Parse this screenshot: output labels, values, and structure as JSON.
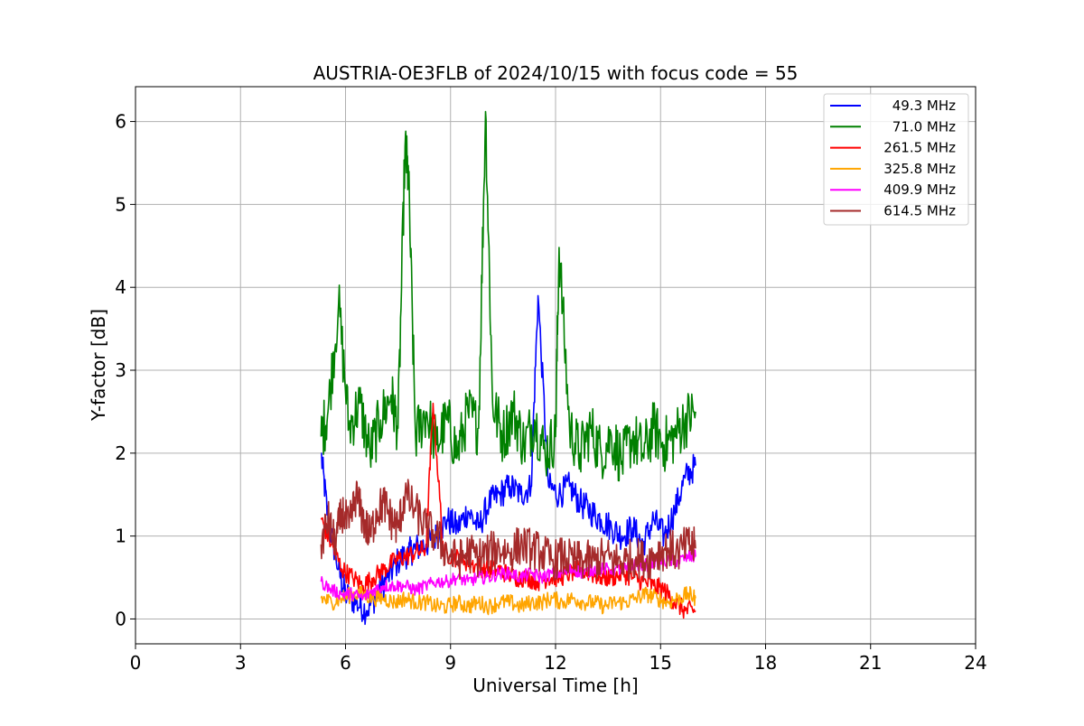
{
  "chart_data": {
    "type": "line",
    "title": "AUSTRIA-OE3FLB of 2024/10/15 with focus code = 55",
    "xlabel": "Universal Time [h]",
    "ylabel": "Y-factor [dB]",
    "xlim": [
      0,
      24
    ],
    "ylim": [
      -0.3,
      6.42
    ],
    "xticks": [
      0,
      3,
      6,
      9,
      12,
      15,
      18,
      21,
      24
    ],
    "yticks": [
      0,
      1,
      2,
      3,
      4,
      5,
      6
    ],
    "grid": true,
    "legend_position": "top-right",
    "series": [
      {
        "name": " 49.3 MHz",
        "color": "#0000ff",
        "x": [
          5.3,
          5.5,
          5.8,
          6.0,
          6.3,
          6.6,
          6.9,
          7.2,
          7.5,
          7.8,
          8.0,
          8.3,
          8.6,
          8.9,
          9.2,
          9.5,
          9.8,
          10.1,
          10.4,
          10.7,
          11.0,
          11.3,
          11.5,
          11.8,
          12.1,
          12.4,
          12.7,
          13.0,
          13.3,
          13.6,
          13.9,
          14.2,
          14.5,
          14.8,
          15.1,
          15.4,
          15.7,
          16.0
        ],
        "y": [
          2.0,
          1.2,
          0.6,
          0.3,
          0.2,
          0.1,
          0.3,
          0.5,
          0.7,
          0.8,
          0.85,
          0.9,
          1.0,
          1.2,
          1.1,
          1.3,
          1.1,
          1.4,
          1.5,
          1.6,
          1.5,
          1.6,
          3.9,
          1.6,
          1.5,
          1.6,
          1.4,
          1.3,
          1.2,
          1.1,
          1.0,
          1.1,
          0.9,
          1.2,
          1.0,
          1.3,
          1.7,
          1.85
        ]
      },
      {
        "name": " 71.0 MHz",
        "color": "#008000",
        "x": [
          5.3,
          5.5,
          5.8,
          6.1,
          6.4,
          6.7,
          7.0,
          7.3,
          7.5,
          7.7,
          7.8,
          8.0,
          8.3,
          8.6,
          8.9,
          9.2,
          9.5,
          9.8,
          10.0,
          10.2,
          10.5,
          10.8,
          11.1,
          11.4,
          11.7,
          12.0,
          12.1,
          12.4,
          12.7,
          13.0,
          13.3,
          13.6,
          13.9,
          14.2,
          14.5,
          14.8,
          15.1,
          15.4,
          15.7,
          16.0
        ],
        "y": [
          2.2,
          2.5,
          3.8,
          2.3,
          2.6,
          2.0,
          2.4,
          2.7,
          2.3,
          5.7,
          5.3,
          2.2,
          2.5,
          2.1,
          2.4,
          2.0,
          2.5,
          2.3,
          6.12,
          2.6,
          2.2,
          2.5,
          2.1,
          2.4,
          2.0,
          2.2,
          4.48,
          2.3,
          2.0,
          2.3,
          2.0,
          2.2,
          1.9,
          2.2,
          2.0,
          2.3,
          2.1,
          2.2,
          2.4,
          2.5
        ]
      },
      {
        "name": "261.5 MHz",
        "color": "#ff0000",
        "x": [
          5.3,
          5.6,
          5.9,
          6.2,
          6.5,
          6.8,
          7.1,
          7.4,
          7.7,
          8.0,
          8.3,
          8.5,
          8.8,
          9.1,
          9.4,
          9.7,
          10.0,
          10.3,
          10.6,
          10.9,
          11.2,
          11.5,
          11.8,
          12.1,
          12.4,
          12.7,
          13.0,
          13.3,
          13.6,
          13.9,
          14.2,
          14.5,
          14.8,
          15.1,
          15.4,
          15.7,
          16.0
        ],
        "y": [
          1.2,
          0.9,
          0.6,
          0.5,
          0.4,
          0.5,
          0.6,
          0.7,
          0.75,
          0.8,
          0.85,
          2.6,
          0.8,
          0.75,
          0.7,
          0.65,
          0.6,
          0.6,
          0.55,
          0.5,
          0.5,
          0.45,
          0.5,
          0.5,
          0.55,
          0.6,
          0.55,
          0.5,
          0.5,
          0.55,
          0.5,
          0.45,
          0.4,
          0.35,
          0.2,
          0.1,
          0.1
        ]
      },
      {
        "name": "325.8 MHz",
        "color": "#ffa500",
        "x": [
          5.3,
          5.6,
          5.9,
          6.2,
          6.5,
          6.8,
          7.1,
          7.4,
          7.7,
          8.0,
          8.3,
          8.6,
          8.9,
          9.2,
          9.5,
          9.8,
          10.1,
          10.4,
          10.7,
          11.0,
          11.3,
          11.6,
          11.9,
          12.2,
          12.5,
          12.8,
          13.1,
          13.4,
          13.7,
          14.0,
          14.3,
          14.6,
          14.9,
          15.2,
          15.5,
          15.8,
          16.0
        ],
        "y": [
          0.25,
          0.2,
          0.25,
          0.3,
          0.3,
          0.25,
          0.25,
          0.2,
          0.25,
          0.2,
          0.2,
          0.15,
          0.15,
          0.2,
          0.15,
          0.2,
          0.15,
          0.2,
          0.2,
          0.15,
          0.2,
          0.2,
          0.25,
          0.2,
          0.25,
          0.2,
          0.2,
          0.15,
          0.2,
          0.2,
          0.25,
          0.3,
          0.25,
          0.2,
          0.25,
          0.3,
          0.25
        ]
      },
      {
        "name": "409.9 MHz",
        "color": "#ff00ff",
        "x": [
          5.3,
          5.6,
          5.9,
          6.2,
          6.5,
          6.8,
          7.1,
          7.4,
          7.7,
          8.0,
          8.3,
          8.6,
          8.9,
          9.2,
          9.5,
          9.8,
          10.1,
          10.4,
          10.7,
          11.0,
          11.3,
          11.6,
          11.9,
          12.2,
          12.5,
          12.8,
          13.1,
          13.4,
          13.7,
          14.0,
          14.3,
          14.6,
          14.9,
          15.2,
          15.5,
          15.8,
          16.0
        ],
        "y": [
          0.45,
          0.35,
          0.3,
          0.3,
          0.25,
          0.35,
          0.4,
          0.4,
          0.4,
          0.35,
          0.4,
          0.45,
          0.45,
          0.5,
          0.45,
          0.5,
          0.5,
          0.55,
          0.55,
          0.5,
          0.55,
          0.5,
          0.55,
          0.55,
          0.6,
          0.55,
          0.6,
          0.6,
          0.6,
          0.6,
          0.65,
          0.65,
          0.7,
          0.7,
          0.7,
          0.75,
          0.75
        ]
      },
      {
        "name": "614.5 MHz",
        "color": "#a52a2a",
        "x": [
          5.3,
          5.5,
          5.7,
          5.9,
          6.1,
          6.3,
          6.5,
          6.7,
          6.9,
          7.1,
          7.3,
          7.5,
          7.7,
          8.0,
          8.3,
          8.6,
          8.9,
          9.2,
          9.5,
          9.8,
          10.1,
          10.4,
          10.7,
          11.0,
          11.3,
          11.6,
          11.9,
          12.2,
          12.5,
          12.8,
          13.1,
          13.4,
          13.7,
          14.0,
          14.3,
          14.6,
          14.9,
          15.2,
          15.5,
          15.8,
          16.0
        ],
        "y": [
          0.9,
          1.2,
          0.9,
          1.3,
          1.1,
          1.5,
          1.2,
          1.0,
          1.3,
          1.4,
          1.2,
          1.1,
          1.5,
          1.3,
          1.1,
          1.0,
          0.8,
          0.7,
          0.8,
          0.75,
          0.8,
          0.85,
          0.8,
          0.9,
          0.85,
          0.8,
          0.7,
          0.75,
          0.7,
          0.7,
          0.7,
          0.75,
          0.7,
          0.7,
          0.75,
          0.7,
          0.8,
          0.85,
          0.8,
          0.9,
          0.85
        ]
      }
    ]
  }
}
